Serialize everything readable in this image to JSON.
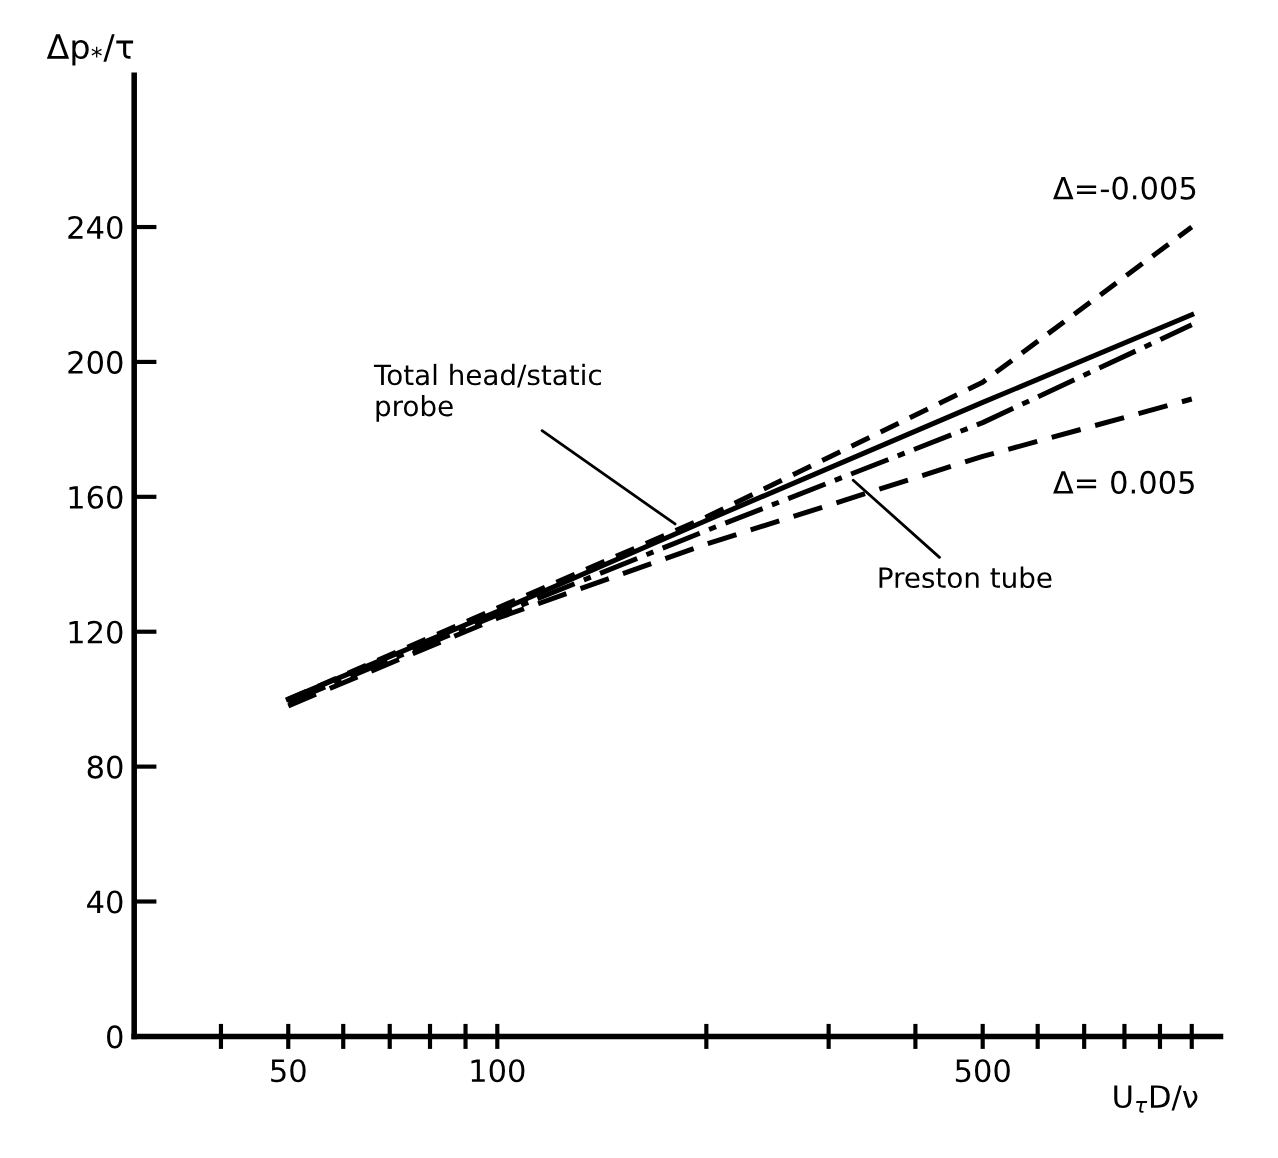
{
  "chart_data": {
    "type": "line",
    "xlabel": "U$_{τ}$D/ν",
    "ylabel": "Δp$_{*}$/τ",
    "log": "x",
    "xlim": [
      30,
      1100
    ],
    "xticks": [
      {
        "value": 40,
        "label": null
      },
      50,
      {
        "value": 60,
        "label": null
      },
      {
        "value": 70,
        "label": null
      },
      {
        "value": 80,
        "label": null
      },
      {
        "value": 90,
        "label": null
      },
      100,
      {
        "value": 200,
        "label": null
      },
      {
        "value": 300,
        "label": null
      },
      {
        "value": 400,
        "label": null
      },
      500,
      {
        "value": 600,
        "label": null
      },
      {
        "value": 700,
        "label": null
      },
      {
        "value": 800,
        "label": null
      },
      {
        "value": 900,
        "label": null
      },
      {
        "value": 1000,
        "label": null
      }
    ],
    "ylim": [
      0,
      285
    ],
    "yticks": [
      0,
      40,
      80,
      120,
      160,
      200,
      240
    ],
    "grid": false,
    "legend": false,
    "marker": "none",
    "x": [
      50,
      100,
      200,
      500,
      1000
    ],
    "series": [
      {
        "name": "Δ=-0.005",
        "color": "#000000",
        "line_style": "dashed",
        "values": [
          100,
          127,
          154,
          194,
          240
        ]
      },
      {
        "color": "#000000",
        "line_style": "solid",
        "values": [
          100,
          126,
          153,
          188,
          214
        ]
      },
      {
        "color": "#000000",
        "line_style": "dashdot",
        "values": [
          99,
          125,
          150,
          182,
          211
        ]
      },
      {
        "name": "Δ= 0.005",
        "color": "#000000",
        "line_style": "longdash",
        "values": [
          98,
          124,
          146,
          172,
          189
        ]
      }
    ],
    "annotations": [
      {
        "text": "Total head/static\nprobe",
        "x": 183,
        "y": 151
      },
      {
        "text": "Preston tube",
        "x": 321,
        "y": 166
      }
    ]
  }
}
